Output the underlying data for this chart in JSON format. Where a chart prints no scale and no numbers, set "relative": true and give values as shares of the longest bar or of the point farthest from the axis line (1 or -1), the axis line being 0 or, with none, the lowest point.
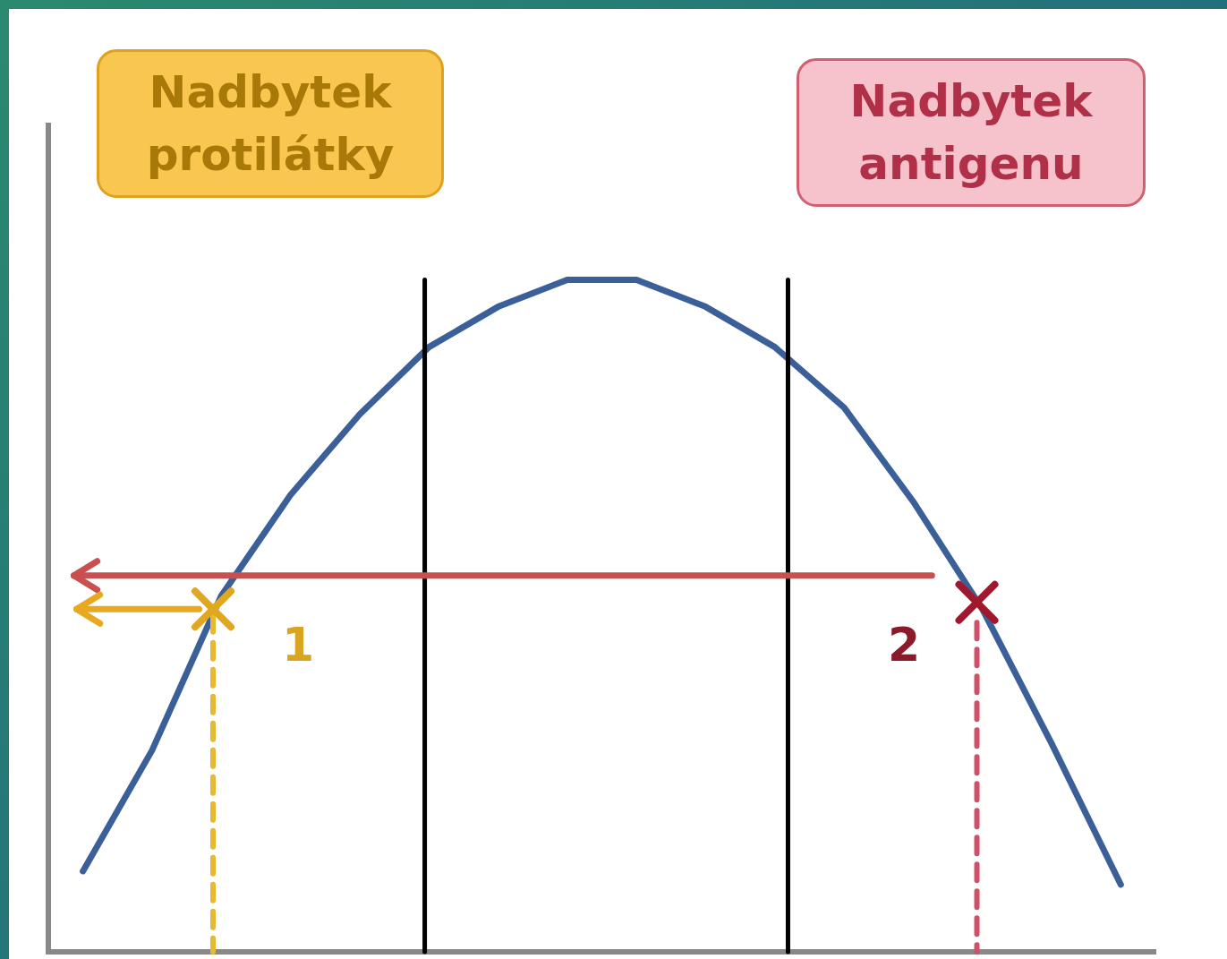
{
  "chart_data": {
    "type": "line",
    "relative": true,
    "tick_labels": false,
    "grid": false,
    "legend": false,
    "marker": "none",
    "categories": [
      null,
      null,
      null,
      null,
      null,
      null,
      null,
      null,
      null,
      null,
      null,
      null,
      null,
      null,
      null,
      null
    ],
    "series": [
      {
        "color": "#3b5f98",
        "values": [
          0.12,
          0.3,
          0.53,
          0.68,
          0.8,
          0.9,
          0.96,
          1,
          1,
          0.96,
          0.9,
          0.81,
          0.67,
          0.51,
          0.31,
          0.1
        ]
      }
    ],
    "annotations": [
      "Nadbytek protilátky",
      "Nadbytek antigenu",
      "1",
      "2"
    ]
  }
}
